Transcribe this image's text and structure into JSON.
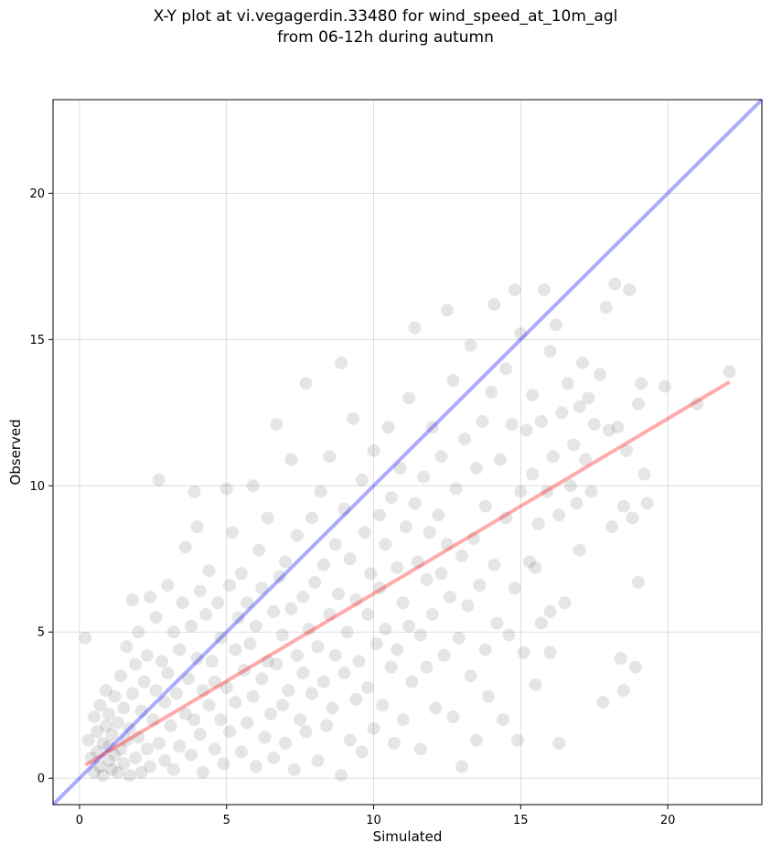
{
  "chart_data": {
    "type": "scatter",
    "title": "X-Y plot at vi.vegagerdin.33480 for wind_speed_at_10m_agl",
    "subtitle": "from 06-12h during autumn",
    "xlabel": "Simulated",
    "ylabel": "Observed",
    "xlim": [
      -0.9,
      23.2
    ],
    "ylim": [
      -0.9,
      23.2
    ],
    "xticks": [
      0,
      5,
      10,
      15,
      20
    ],
    "yticks": [
      0,
      5,
      10,
      15,
      20
    ],
    "grid": true,
    "colors": {
      "points": "#000000",
      "identity_line": "#0000ff",
      "fit_line": "#ff0000"
    },
    "identity_line": {
      "x": [
        -0.9,
        23.2
      ],
      "y": [
        -0.9,
        23.2
      ]
    },
    "fit_line": {
      "x": [
        0.2,
        22.1
      ],
      "y": [
        0.45,
        13.55
      ]
    },
    "points": [
      [
        0.2,
        4.8
      ],
      [
        0.3,
        1.3
      ],
      [
        0.4,
        0.7
      ],
      [
        0.5,
        2.1
      ],
      [
        0.5,
        0.2
      ],
      [
        0.6,
        1.6
      ],
      [
        0.6,
        0.9
      ],
      [
        0.7,
        2.5
      ],
      [
        0.7,
        0.4
      ],
      [
        0.8,
        1.2
      ],
      [
        0.8,
        0.1
      ],
      [
        0.9,
        3.0
      ],
      [
        0.9,
        1.8
      ],
      [
        1.0,
        0.6
      ],
      [
        1.0,
        1.1
      ],
      [
        1.0,
        2.2
      ],
      [
        1.1,
        0.3
      ],
      [
        1.1,
        1.5
      ],
      [
        1.2,
        0.8
      ],
      [
        1.2,
        2.8
      ],
      [
        1.3,
        0.2
      ],
      [
        1.3,
        1.9
      ],
      [
        1.4,
        1.0
      ],
      [
        1.4,
        3.5
      ],
      [
        1.5,
        0.5
      ],
      [
        1.5,
        2.4
      ],
      [
        1.6,
        1.3
      ],
      [
        1.6,
        4.5
      ],
      [
        1.7,
        0.1
      ],
      [
        1.7,
        1.7
      ],
      [
        1.8,
        2.9
      ],
      [
        1.8,
        6.1
      ],
      [
        1.9,
        0.7
      ],
      [
        1.9,
        3.9
      ],
      [
        2.0,
        1.4
      ],
      [
        2.0,
        5.0
      ],
      [
        2.1,
        2.3
      ],
      [
        2.1,
        0.2
      ],
      [
        2.2,
        3.3
      ],
      [
        2.3,
        1.0
      ],
      [
        2.3,
        4.2
      ],
      [
        2.4,
        6.2
      ],
      [
        2.4,
        0.4
      ],
      [
        2.5,
        2.0
      ],
      [
        2.6,
        3.0
      ],
      [
        2.6,
        5.5
      ],
      [
        2.7,
        10.2
      ],
      [
        2.7,
        1.2
      ],
      [
        2.8,
        4.0
      ],
      [
        2.9,
        0.6
      ],
      [
        2.9,
        2.6
      ],
      [
        3.0,
        6.6
      ],
      [
        3.0,
        3.6
      ],
      [
        3.1,
        1.8
      ],
      [
        3.2,
        5.0
      ],
      [
        3.2,
        0.3
      ],
      [
        3.3,
        2.9
      ],
      [
        3.4,
        4.4
      ],
      [
        3.4,
        1.1
      ],
      [
        3.5,
        6.0
      ],
      [
        3.6,
        2.2
      ],
      [
        3.6,
        7.9
      ],
      [
        3.7,
        3.4
      ],
      [
        3.8,
        0.8
      ],
      [
        3.8,
        5.2
      ],
      [
        3.9,
        9.8
      ],
      [
        3.9,
        2.0
      ],
      [
        4.0,
        4.1
      ],
      [
        4.0,
        8.6
      ],
      [
        4.1,
        1.5
      ],
      [
        4.1,
        6.4
      ],
      [
        4.2,
        3.0
      ],
      [
        4.2,
        0.2
      ],
      [
        4.3,
        5.6
      ],
      [
        4.4,
        2.5
      ],
      [
        4.4,
        7.1
      ],
      [
        4.5,
        4.0
      ],
      [
        4.6,
        1.0
      ],
      [
        4.6,
        3.3
      ],
      [
        4.7,
        6.0
      ],
      [
        4.8,
        2.0
      ],
      [
        4.8,
        4.8
      ],
      [
        4.9,
        0.5
      ],
      [
        5.0,
        9.9
      ],
      [
        5.0,
        3.1
      ],
      [
        5.1,
        6.6
      ],
      [
        5.1,
        1.6
      ],
      [
        5.2,
        8.4
      ],
      [
        5.3,
        4.4
      ],
      [
        5.3,
        2.6
      ],
      [
        5.4,
        5.5
      ],
      [
        5.5,
        0.9
      ],
      [
        5.5,
        7.0
      ],
      [
        5.6,
        3.7
      ],
      [
        5.7,
        1.9
      ],
      [
        5.7,
        6.0
      ],
      [
        5.8,
        4.6
      ],
      [
        5.9,
        2.8
      ],
      [
        5.9,
        10.0
      ],
      [
        6.0,
        5.2
      ],
      [
        6.0,
        0.4
      ],
      [
        6.1,
        7.8
      ],
      [
        6.2,
        3.4
      ],
      [
        6.2,
        6.5
      ],
      [
        6.3,
        1.4
      ],
      [
        6.4,
        4.0
      ],
      [
        6.4,
        8.9
      ],
      [
        6.5,
        2.2
      ],
      [
        6.6,
        5.7
      ],
      [
        6.6,
        0.7
      ],
      [
        6.7,
        12.1
      ],
      [
        6.7,
        3.9
      ],
      [
        6.8,
        6.9
      ],
      [
        6.9,
        2.5
      ],
      [
        6.9,
        4.9
      ],
      [
        7.0,
        1.2
      ],
      [
        7.0,
        7.4
      ],
      [
        7.1,
        3.0
      ],
      [
        7.2,
        5.8
      ],
      [
        7.2,
        10.9
      ],
      [
        7.3,
        0.3
      ],
      [
        7.4,
        4.2
      ],
      [
        7.4,
        8.3
      ],
      [
        7.5,
        2.0
      ],
      [
        7.6,
        6.2
      ],
      [
        7.6,
        3.6
      ],
      [
        7.7,
        13.5
      ],
      [
        7.7,
        1.6
      ],
      [
        7.8,
        5.1
      ],
      [
        7.9,
        8.9
      ],
      [
        7.9,
        2.9
      ],
      [
        8.0,
        6.7
      ],
      [
        8.1,
        4.5
      ],
      [
        8.1,
        0.6
      ],
      [
        8.2,
        9.8
      ],
      [
        8.3,
        3.3
      ],
      [
        8.3,
        7.3
      ],
      [
        8.4,
        1.8
      ],
      [
        8.5,
        5.6
      ],
      [
        8.5,
        11.0
      ],
      [
        8.6,
        2.4
      ],
      [
        8.7,
        8.0
      ],
      [
        8.7,
        4.2
      ],
      [
        8.8,
        6.3
      ],
      [
        8.9,
        0.1
      ],
      [
        8.9,
        14.2
      ],
      [
        9.0,
        3.6
      ],
      [
        9.0,
        9.2
      ],
      [
        9.1,
        5.0
      ],
      [
        9.2,
        1.3
      ],
      [
        9.2,
        7.5
      ],
      [
        9.3,
        12.3
      ],
      [
        9.4,
        2.7
      ],
      [
        9.4,
        6.1
      ],
      [
        9.5,
        4.0
      ],
      [
        9.6,
        10.2
      ],
      [
        9.6,
        0.9
      ],
      [
        9.7,
        8.4
      ],
      [
        9.8,
        5.6
      ],
      [
        9.8,
        3.1
      ],
      [
        9.9,
        7.0
      ],
      [
        10.0,
        1.7
      ],
      [
        10.0,
        11.2
      ],
      [
        10.1,
        4.6
      ],
      [
        10.2,
        9.0
      ],
      [
        10.2,
        6.5
      ],
      [
        10.3,
        2.5
      ],
      [
        10.4,
        8.0
      ],
      [
        10.4,
        5.1
      ],
      [
        10.5,
        12.0
      ],
      [
        10.6,
        3.8
      ],
      [
        10.6,
        9.6
      ],
      [
        10.7,
        1.2
      ],
      [
        10.8,
        7.2
      ],
      [
        10.8,
        4.4
      ],
      [
        10.9,
        10.6
      ],
      [
        11.0,
        6.0
      ],
      [
        11.0,
        2.0
      ],
      [
        11.1,
        8.6
      ],
      [
        11.2,
        13.0
      ],
      [
        11.2,
        5.2
      ],
      [
        11.3,
        3.3
      ],
      [
        11.4,
        9.4
      ],
      [
        11.4,
        15.4
      ],
      [
        11.5,
        7.4
      ],
      [
        11.6,
        1.0
      ],
      [
        11.6,
        4.9
      ],
      [
        11.7,
        10.3
      ],
      [
        11.8,
        6.8
      ],
      [
        11.8,
        3.8
      ],
      [
        11.9,
        8.4
      ],
      [
        12.0,
        12.0
      ],
      [
        12.0,
        5.6
      ],
      [
        12.1,
        2.4
      ],
      [
        12.2,
        9.0
      ],
      [
        12.3,
        7.0
      ],
      [
        12.3,
        11.0
      ],
      [
        12.4,
        4.2
      ],
      [
        12.5,
        16.0
      ],
      [
        12.5,
        8.0
      ],
      [
        12.6,
        6.2
      ],
      [
        12.7,
        2.1
      ],
      [
        12.7,
        13.6
      ],
      [
        12.8,
        9.9
      ],
      [
        12.9,
        4.8
      ],
      [
        13.0,
        7.6
      ],
      [
        13.0,
        0.4
      ],
      [
        13.1,
        11.6
      ],
      [
        13.2,
        5.9
      ],
      [
        13.3,
        3.5
      ],
      [
        13.3,
        14.8
      ],
      [
        13.4,
        8.2
      ],
      [
        13.5,
        10.6
      ],
      [
        13.5,
        1.3
      ],
      [
        13.6,
        6.6
      ],
      [
        13.7,
        12.2
      ],
      [
        13.8,
        4.4
      ],
      [
        13.8,
        9.3
      ],
      [
        13.9,
        2.8
      ],
      [
        14.0,
        13.2
      ],
      [
        14.1,
        7.3
      ],
      [
        14.1,
        16.2
      ],
      [
        14.2,
        5.3
      ],
      [
        14.3,
        10.9
      ],
      [
        14.4,
        2.0
      ],
      [
        14.5,
        8.9
      ],
      [
        14.5,
        14.0
      ],
      [
        14.6,
        4.9
      ],
      [
        14.7,
        12.1
      ],
      [
        14.8,
        6.5
      ],
      [
        14.8,
        16.7
      ],
      [
        14.9,
        1.3
      ],
      [
        15.0,
        9.8
      ],
      [
        15.0,
        15.2
      ],
      [
        15.1,
        4.3
      ],
      [
        15.2,
        11.9
      ],
      [
        15.3,
        7.4
      ],
      [
        15.4,
        13.1
      ],
      [
        15.4,
        10.4
      ],
      [
        15.5,
        3.2
      ],
      [
        15.6,
        8.7
      ],
      [
        15.7,
        12.2
      ],
      [
        15.7,
        5.3
      ],
      [
        15.8,
        16.7
      ],
      [
        15.9,
        9.8
      ],
      [
        16.0,
        14.6
      ],
      [
        16.0,
        4.3
      ],
      [
        16.1,
        11.0
      ],
      [
        16.2,
        15.5
      ],
      [
        16.3,
        1.2
      ],
      [
        16.3,
        9.0
      ],
      [
        16.4,
        12.5
      ],
      [
        16.5,
        6.0
      ],
      [
        16.6,
        13.5
      ],
      [
        16.7,
        10.0
      ],
      [
        16.8,
        11.4
      ],
      [
        16.9,
        9.4
      ],
      [
        17.0,
        12.7
      ],
      [
        17.1,
        14.2
      ],
      [
        17.2,
        10.9
      ],
      [
        17.3,
        13.0
      ],
      [
        17.4,
        9.8
      ],
      [
        17.5,
        12.1
      ],
      [
        17.7,
        13.8
      ],
      [
        17.8,
        2.6
      ],
      [
        17.9,
        16.1
      ],
      [
        18.0,
        11.9
      ],
      [
        18.1,
        8.6
      ],
      [
        18.2,
        16.9
      ],
      [
        18.3,
        12.0
      ],
      [
        18.4,
        4.1
      ],
      [
        18.5,
        9.3
      ],
      [
        18.6,
        11.2
      ],
      [
        18.7,
        16.7
      ],
      [
        18.8,
        8.9
      ],
      [
        18.9,
        3.8
      ],
      [
        19.0,
        12.8
      ],
      [
        19.1,
        13.5
      ],
      [
        19.2,
        10.4
      ],
      [
        19.3,
        9.4
      ],
      [
        19.9,
        13.4
      ],
      [
        21.0,
        12.8
      ],
      [
        22.1,
        13.9
      ],
      [
        19.0,
        6.7
      ],
      [
        18.5,
        3.0
      ],
      [
        17.0,
        7.8
      ],
      [
        16.0,
        5.7
      ],
      [
        15.5,
        7.2
      ]
    ]
  }
}
